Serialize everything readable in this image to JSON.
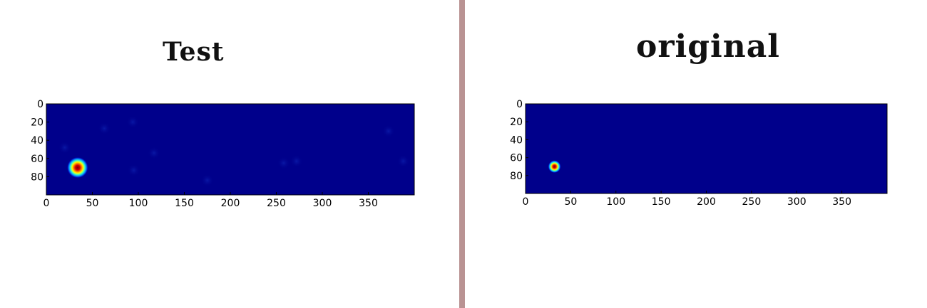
{
  "colors": {
    "divider": "#b99393",
    "background": "#ffffff",
    "heatmap_low": "#00008b",
    "heatmap_high": "#8b0000"
  },
  "chart_data": [
    {
      "type": "heatmap",
      "title": "Test",
      "xlim": [
        0,
        400
      ],
      "ylim": [
        100,
        0
      ],
      "xticks": [
        0,
        50,
        100,
        150,
        200,
        250,
        300,
        350
      ],
      "yticks": [
        0,
        20,
        40,
        60,
        80
      ],
      "colormap": "jet",
      "hotspots": [
        {
          "x": 34,
          "y": 70,
          "intensity": 1.0
        }
      ],
      "noise_points": [
        {
          "x": 20,
          "y": 48,
          "intensity": 0.08
        },
        {
          "x": 63,
          "y": 27,
          "intensity": 0.06
        },
        {
          "x": 95,
          "y": 73,
          "intensity": 0.07
        },
        {
          "x": 117,
          "y": 54,
          "intensity": 0.08
        },
        {
          "x": 175,
          "y": 84,
          "intensity": 0.06
        },
        {
          "x": 258,
          "y": 65,
          "intensity": 0.06
        },
        {
          "x": 272,
          "y": 63,
          "intensity": 0.05
        },
        {
          "x": 372,
          "y": 30,
          "intensity": 0.05
        },
        {
          "x": 388,
          "y": 63,
          "intensity": 0.07
        },
        {
          "x": 94,
          "y": 20,
          "intensity": 0.05
        }
      ]
    },
    {
      "type": "heatmap",
      "title": "original",
      "xlim": [
        0,
        400
      ],
      "ylim": [
        100,
        0
      ],
      "xticks": [
        0,
        50,
        100,
        150,
        200,
        250,
        300,
        350
      ],
      "yticks": [
        0,
        20,
        40,
        60,
        80
      ],
      "colormap": "jet",
      "hotspots": [
        {
          "x": 32,
          "y": 70,
          "intensity": 1.0
        }
      ],
      "noise_points": []
    }
  ]
}
